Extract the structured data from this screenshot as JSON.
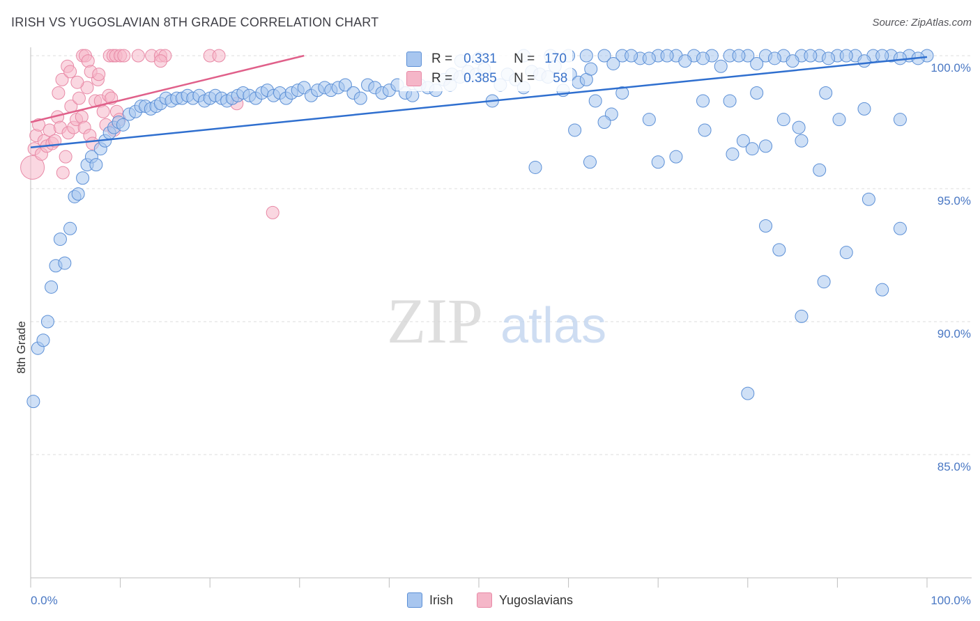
{
  "header": {
    "title": "IRISH VS YUGOSLAVIAN 8TH GRADE CORRELATION CHART",
    "source": "Source: ZipAtlas.com"
  },
  "watermark": {
    "zip": "ZIP",
    "atlas": "atlas"
  },
  "stats": {
    "irish": {
      "r_label": "R =",
      "r_value": "0.331",
      "n_label": "N =",
      "n_value": "170"
    },
    "yugo": {
      "r_label": "R =",
      "r_value": "0.385",
      "n_label": "N =",
      "n_value": "58"
    }
  },
  "legend": {
    "irish": "Irish",
    "yugo": "Yugoslavians"
  },
  "colors": {
    "irish_fill": "#a8c6ef",
    "irish_stroke": "#5b8fd6",
    "irish_line": "#2f6fcf",
    "yugo_fill": "#f5b6c8",
    "yugo_stroke": "#e889a6",
    "yugo_line": "#e0608a",
    "grid": "#dcdcdc",
    "axis_text": "#4a78c4"
  },
  "chart_data": {
    "type": "scatter",
    "title": "IRISH VS YUGOSLAVIAN 8TH GRADE CORRELATION CHART",
    "xlabel": "",
    "ylabel": "8th Grade",
    "xlim": [
      0,
      100
    ],
    "ylim": [
      80.5,
      100.8
    ],
    "y_ticks": [
      {
        "value": 100,
        "label": "100.0%"
      },
      {
        "value": 95,
        "label": "95.0%"
      },
      {
        "value": 90,
        "label": "90.0%"
      },
      {
        "value": 85,
        "label": "85.0%"
      }
    ],
    "x_tick_labels": {
      "min": "0.0%",
      "max": "100.0%"
    },
    "series": [
      {
        "name": "Irish",
        "R": 0.331,
        "N": 170,
        "trend": {
          "x0": 0,
          "y0": 96.55,
          "x1": 100,
          "y1": 99.95
        },
        "points": [
          [
            0.3,
            87.0
          ],
          [
            0.8,
            89.0
          ],
          [
            1.4,
            89.3
          ],
          [
            1.9,
            90.0
          ],
          [
            2.3,
            91.3
          ],
          [
            2.8,
            92.1
          ],
          [
            3.3,
            93.1
          ],
          [
            3.8,
            92.2
          ],
          [
            4.4,
            93.5
          ],
          [
            4.9,
            94.7
          ],
          [
            5.3,
            94.8
          ],
          [
            5.8,
            95.4
          ],
          [
            6.3,
            95.9
          ],
          [
            6.8,
            96.2
          ],
          [
            7.3,
            95.9
          ],
          [
            7.8,
            96.5
          ],
          [
            8.3,
            96.8
          ],
          [
            8.8,
            97.1
          ],
          [
            9.3,
            97.3
          ],
          [
            9.8,
            97.5
          ],
          [
            10.3,
            97.4
          ],
          [
            11.0,
            97.8
          ],
          [
            11.7,
            97.9
          ],
          [
            12.3,
            98.1
          ],
          [
            12.8,
            98.1
          ],
          [
            13.4,
            98.0
          ],
          [
            14.0,
            98.1
          ],
          [
            14.5,
            98.2
          ],
          [
            15.1,
            98.4
          ],
          [
            15.7,
            98.3
          ],
          [
            16.3,
            98.4
          ],
          [
            16.9,
            98.4
          ],
          [
            17.5,
            98.5
          ],
          [
            18.1,
            98.4
          ],
          [
            18.8,
            98.5
          ],
          [
            19.4,
            98.3
          ],
          [
            20.0,
            98.4
          ],
          [
            20.6,
            98.5
          ],
          [
            21.3,
            98.4
          ],
          [
            21.9,
            98.3
          ],
          [
            22.5,
            98.4
          ],
          [
            23.1,
            98.5
          ],
          [
            23.7,
            98.6
          ],
          [
            24.4,
            98.5
          ],
          [
            25.1,
            98.4
          ],
          [
            25.8,
            98.6
          ],
          [
            26.4,
            98.7
          ],
          [
            27.1,
            98.5
          ],
          [
            27.8,
            98.6
          ],
          [
            28.5,
            98.4
          ],
          [
            29.1,
            98.6
          ],
          [
            29.8,
            98.7
          ],
          [
            30.5,
            98.8
          ],
          [
            31.3,
            98.5
          ],
          [
            32.0,
            98.7
          ],
          [
            32.8,
            98.8
          ],
          [
            33.5,
            98.7
          ],
          [
            34.3,
            98.8
          ],
          [
            35.1,
            98.9
          ],
          [
            36.0,
            98.6
          ],
          [
            36.8,
            98.4
          ],
          [
            37.6,
            98.9
          ],
          [
            38.4,
            98.8
          ],
          [
            39.2,
            98.6
          ],
          [
            40.0,
            98.7
          ],
          [
            40.9,
            98.9
          ],
          [
            41.8,
            98.6
          ],
          [
            42.6,
            98.5
          ],
          [
            43.4,
            98.9
          ],
          [
            44.3,
            98.8
          ],
          [
            45.2,
            98.7
          ],
          [
            46.1,
            99.1
          ],
          [
            47.0,
            99.3
          ],
          [
            47.9,
            99.2
          ],
          [
            48.8,
            99.4
          ],
          [
            49.7,
            99.3
          ],
          [
            50.6,
            99.5
          ],
          [
            51.5,
            98.3
          ],
          [
            52.4,
            98.9
          ],
          [
            53.2,
            99.3
          ],
          [
            54.1,
            99.1
          ],
          [
            55.0,
            98.8
          ],
          [
            55.9,
            99.4
          ],
          [
            56.8,
            99.3
          ],
          [
            57.7,
            99.2
          ],
          [
            58.5,
            99.6
          ],
          [
            59.4,
            98.7
          ],
          [
            60.2,
            99.3
          ],
          [
            61.1,
            99.0
          ],
          [
            62.0,
            99.1
          ],
          [
            48.0,
            99.8
          ],
          [
            50.0,
            99.9
          ],
          [
            55.0,
            100.0
          ],
          [
            58.0,
            100.0
          ],
          [
            60.0,
            100.0
          ],
          [
            62.5,
            99.5
          ],
          [
            64.0,
            100.0
          ],
          [
            66.0,
            100.0
          ],
          [
            68.0,
            99.9
          ],
          [
            70.0,
            100.0
          ],
          [
            72.0,
            100.0
          ],
          [
            74.0,
            100.0
          ],
          [
            76.0,
            100.0
          ],
          [
            78.0,
            100.0
          ],
          [
            80.0,
            100.0
          ],
          [
            82.0,
            100.0
          ],
          [
            84.0,
            100.0
          ],
          [
            86.0,
            100.0
          ],
          [
            88.0,
            100.0
          ],
          [
            90.0,
            100.0
          ],
          [
            92.0,
            100.0
          ],
          [
            94.0,
            100.0
          ],
          [
            96.0,
            100.0
          ],
          [
            98.0,
            100.0
          ],
          [
            100.0,
            100.0
          ],
          [
            62.0,
            100.0
          ],
          [
            67.0,
            100.0
          ],
          [
            71.0,
            100.0
          ],
          [
            75.0,
            99.9
          ],
          [
            79.0,
            100.0
          ],
          [
            83.0,
            99.9
          ],
          [
            87.0,
            100.0
          ],
          [
            91.0,
            100.0
          ],
          [
            95.0,
            100.0
          ],
          [
            99.0,
            99.9
          ],
          [
            73.0,
            99.8
          ],
          [
            77.0,
            99.6
          ],
          [
            81.0,
            99.7
          ],
          [
            85.0,
            99.8
          ],
          [
            89.0,
            99.9
          ],
          [
            93.0,
            99.8
          ],
          [
            97.0,
            99.9
          ],
          [
            65.0,
            99.7
          ],
          [
            69.0,
            99.9
          ],
          [
            63.0,
            98.3
          ],
          [
            66.0,
            98.6
          ],
          [
            69.0,
            97.6
          ],
          [
            75.0,
            98.3
          ],
          [
            78.0,
            98.3
          ],
          [
            81.0,
            98.6
          ],
          [
            84.0,
            97.6
          ],
          [
            86.0,
            96.8
          ],
          [
            88.0,
            95.7
          ],
          [
            70.0,
            96.0
          ],
          [
            72.0,
            96.2
          ],
          [
            79.5,
            96.8
          ],
          [
            82.0,
            96.6
          ],
          [
            64.8,
            97.8
          ],
          [
            56.3,
            95.8
          ],
          [
            62.4,
            96.0
          ],
          [
            80.5,
            96.5
          ],
          [
            85.7,
            97.3
          ],
          [
            88.7,
            98.6
          ],
          [
            90.2,
            97.6
          ],
          [
            93.0,
            98.0
          ],
          [
            97.0,
            97.6
          ],
          [
            75.2,
            97.2
          ],
          [
            78.3,
            96.3
          ],
          [
            60.7,
            97.2
          ],
          [
            46.8,
            98.9
          ],
          [
            93.5,
            94.6
          ],
          [
            82.0,
            93.6
          ],
          [
            83.5,
            92.7
          ],
          [
            86.0,
            90.2
          ],
          [
            88.5,
            91.5
          ],
          [
            91.0,
            92.6
          ],
          [
            95.0,
            91.2
          ],
          [
            97.0,
            93.5
          ],
          [
            80.0,
            87.3
          ],
          [
            64.0,
            97.5
          ]
        ]
      },
      {
        "name": "Yugoslavians",
        "R": 0.385,
        "N": 58,
        "trend": {
          "x0": 0,
          "y0": 97.5,
          "x1": 30.5,
          "y1": 100.0
        },
        "points": [
          [
            0.2,
            95.8
          ],
          [
            0.4,
            96.5
          ],
          [
            0.6,
            97.0
          ],
          [
            0.9,
            97.4
          ],
          [
            1.2,
            96.3
          ],
          [
            1.5,
            96.8
          ],
          [
            1.8,
            96.6
          ],
          [
            2.1,
            97.2
          ],
          [
            2.4,
            96.7
          ],
          [
            2.7,
            96.8
          ],
          [
            3.0,
            97.7
          ],
          [
            3.3,
            97.3
          ],
          [
            3.6,
            95.6
          ],
          [
            3.9,
            96.2
          ],
          [
            4.2,
            97.1
          ],
          [
            4.5,
            98.1
          ],
          [
            4.8,
            97.3
          ],
          [
            5.1,
            97.6
          ],
          [
            5.4,
            98.4
          ],
          [
            5.7,
            97.7
          ],
          [
            6.0,
            97.3
          ],
          [
            6.3,
            98.8
          ],
          [
            6.6,
            97.0
          ],
          [
            6.9,
            96.7
          ],
          [
            7.2,
            98.3
          ],
          [
            7.5,
            99.1
          ],
          [
            7.8,
            98.3
          ],
          [
            8.1,
            97.9
          ],
          [
            8.4,
            97.4
          ],
          [
            8.7,
            98.5
          ],
          [
            9.0,
            98.4
          ],
          [
            9.3,
            97.2
          ],
          [
            9.6,
            97.9
          ],
          [
            9.9,
            97.6
          ],
          [
            3.1,
            98.6
          ],
          [
            3.5,
            99.1
          ],
          [
            4.1,
            99.6
          ],
          [
            4.4,
            99.4
          ],
          [
            5.2,
            99.0
          ],
          [
            5.8,
            100.0
          ],
          [
            6.1,
            100.0
          ],
          [
            6.4,
            99.8
          ],
          [
            6.7,
            99.4
          ],
          [
            7.6,
            99.3
          ],
          [
            8.8,
            100.0
          ],
          [
            9.2,
            100.0
          ],
          [
            9.5,
            100.0
          ],
          [
            10.0,
            100.0
          ],
          [
            10.4,
            100.0
          ],
          [
            12.0,
            100.0
          ],
          [
            13.5,
            100.0
          ],
          [
            14.5,
            100.0
          ],
          [
            15.0,
            100.0
          ],
          [
            14.5,
            99.8
          ],
          [
            20.0,
            100.0
          ],
          [
            21.0,
            100.0
          ],
          [
            23.0,
            98.2
          ],
          [
            27.0,
            94.1
          ]
        ]
      }
    ]
  }
}
